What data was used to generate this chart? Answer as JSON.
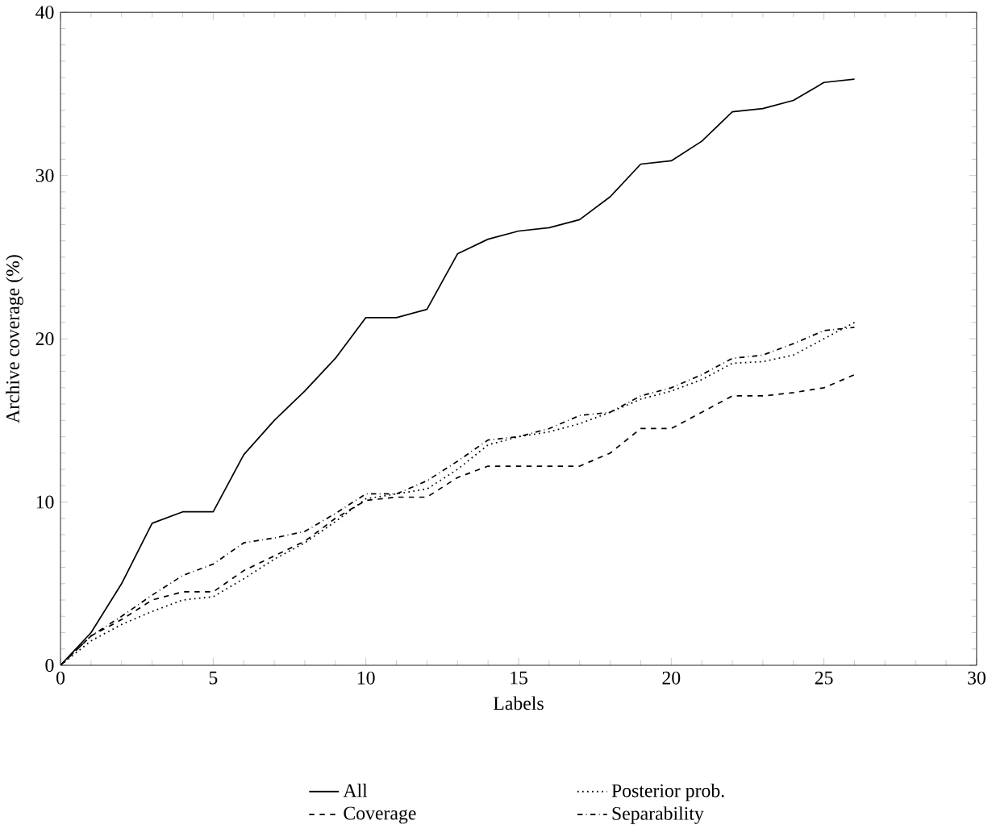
{
  "chart_data": {
    "type": "line",
    "xlabel": "Labels",
    "ylabel": "Archive coverage (%)",
    "xlim": [
      0,
      30
    ],
    "ylim": [
      0,
      40
    ],
    "xticks": [
      0,
      5,
      10,
      15,
      20,
      25,
      30
    ],
    "yticks": [
      0,
      10,
      20,
      30,
      40
    ],
    "legend": "bottom",
    "grid": false,
    "marker": "none",
    "x": [
      0,
      1,
      2,
      3,
      4,
      5,
      6,
      7,
      8,
      9,
      10,
      11,
      12,
      13,
      14,
      15,
      16,
      17,
      18,
      19,
      20,
      21,
      22,
      23,
      24,
      25,
      26
    ],
    "series": [
      {
        "name": "All",
        "color": "#000000",
        "line_style": "solid",
        "values": [
          0,
          2,
          5,
          8.7,
          9.4,
          9.4,
          12.9,
          15,
          16.8,
          18.8,
          21.3,
          21.3,
          21.8,
          25.2,
          26.1,
          26.6,
          26.8,
          27.3,
          28.7,
          30.7,
          30.9,
          32.1,
          33.9,
          34.1,
          34.6,
          35.7,
          35.9
        ]
      },
      {
        "name": "Coverage",
        "color": "#000000",
        "line_style": "dashed",
        "values": [
          0,
          1.8,
          2.8,
          4,
          4.5,
          4.5,
          5.8,
          6.7,
          7.6,
          9,
          10.1,
          10.3,
          10.3,
          11.5,
          12.2,
          12.2,
          12.2,
          12.2,
          13,
          14.5,
          14.5,
          15.5,
          16.5,
          16.5,
          16.7,
          17,
          17.8
        ]
      },
      {
        "name": "Posterior prob.",
        "color": "#000000",
        "line_style": "dotted",
        "values": [
          0,
          1.5,
          2.5,
          3.3,
          4,
          4.2,
          5.3,
          6.5,
          7.5,
          8.8,
          10.2,
          10.5,
          10.8,
          12,
          13.5,
          14,
          14.3,
          14.8,
          15.5,
          16.3,
          16.8,
          17.5,
          18.5,
          18.6,
          19,
          20,
          21
        ]
      },
      {
        "name": "Separability",
        "color": "#000000",
        "line_style": "dashdot",
        "values": [
          0,
          1.8,
          3,
          4.3,
          5.5,
          6.2,
          7.5,
          7.8,
          8.2,
          9.3,
          10.5,
          10.5,
          11.3,
          12.5,
          13.8,
          14,
          14.5,
          15.3,
          15.5,
          16.5,
          17,
          17.8,
          18.8,
          19,
          19.7,
          20.5,
          20.7
        ]
      }
    ]
  }
}
